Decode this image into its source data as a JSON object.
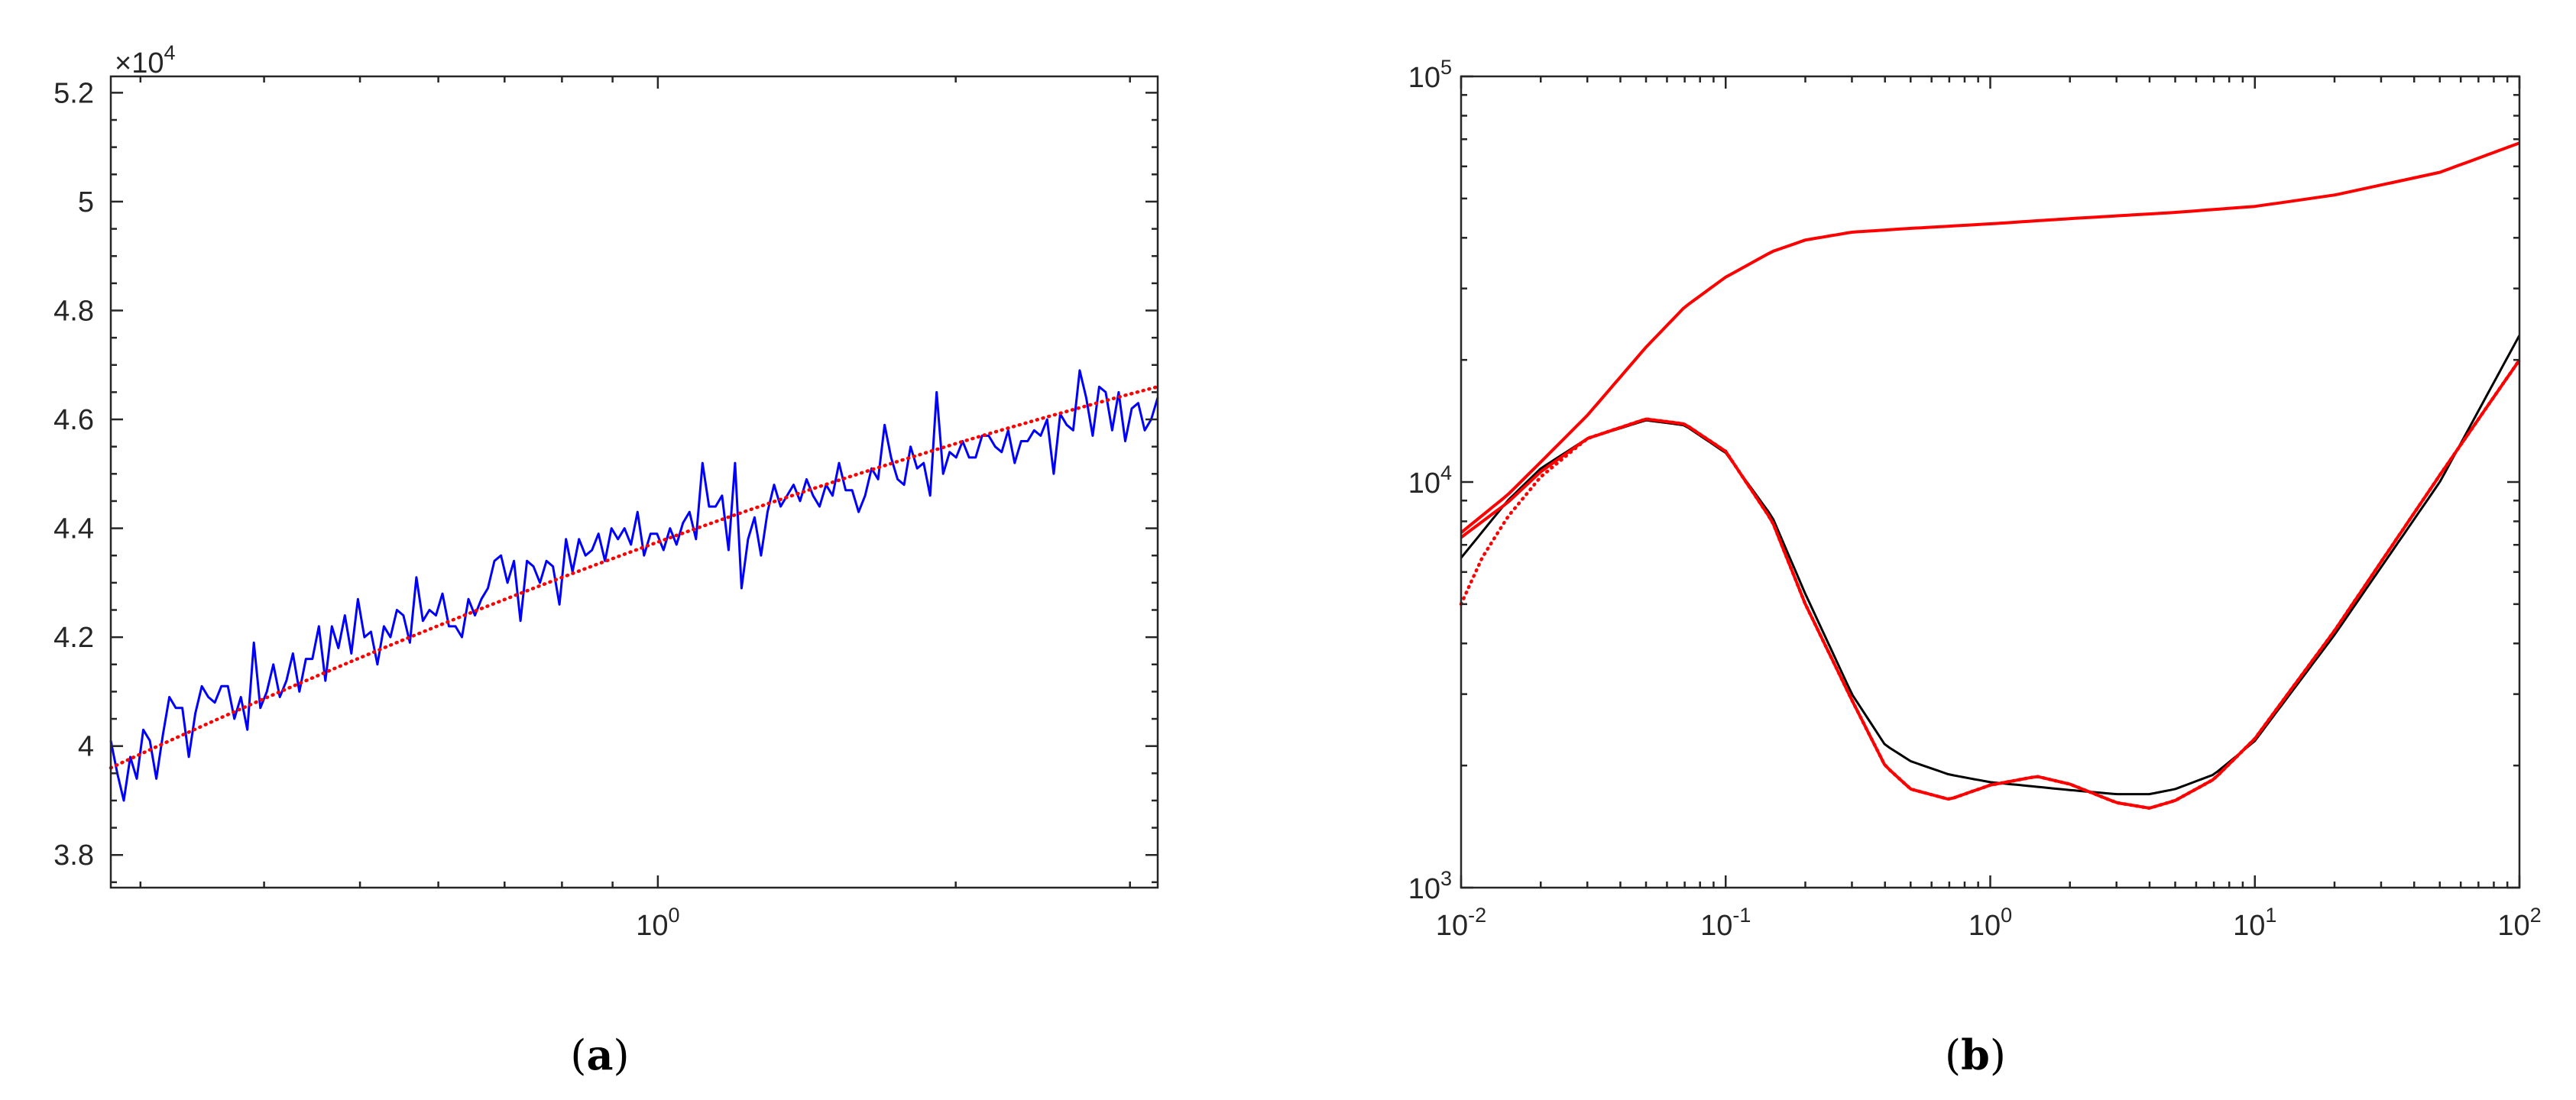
{
  "chart_data": [
    {
      "id": "a",
      "type": "line",
      "caption": "a",
      "xscale": "log",
      "xlim": [
        0.28,
        3.2
      ],
      "ylim": [
        37400,
        52300
      ],
      "exponent_label": {
        "base": "×10",
        "exp": "4"
      },
      "y_ticks": [
        {
          "v": 38000,
          "label": "3.8"
        },
        {
          "v": 40000,
          "label": "4"
        },
        {
          "v": 42000,
          "label": "4.2"
        },
        {
          "v": 44000,
          "label": "4.4"
        },
        {
          "v": 46000,
          "label": "4.6"
        },
        {
          "v": 48000,
          "label": "4.8"
        },
        {
          "v": 50000,
          "label": "5"
        },
        {
          "v": 52000,
          "label": "5.2"
        }
      ],
      "x_ticks": [
        {
          "v": 1,
          "base": "10",
          "exp": "0"
        }
      ],
      "series": [
        {
          "style": "solid",
          "color": "#0000ff",
          "x_start": 0.28,
          "x_end": 3.2,
          "y": [
            40100,
            39500,
            39000,
            39800,
            39400,
            40300,
            40100,
            39400,
            40200,
            40900,
            40700,
            40700,
            39800,
            40600,
            41100,
            40900,
            40800,
            41100,
            41100,
            40500,
            40900,
            40300,
            41900,
            40700,
            41000,
            41500,
            40900,
            41200,
            41700,
            41000,
            41600,
            41600,
            42200,
            41200,
            42200,
            41800,
            42400,
            41700,
            42700,
            42000,
            42100,
            41500,
            42200,
            42000,
            42500,
            42400,
            41900,
            43100,
            42300,
            42500,
            42400,
            42800,
            42200,
            42200,
            42000,
            42700,
            42400,
            42700,
            42900,
            43400,
            43500,
            43000,
            43400,
            42300,
            43400,
            43300,
            43000,
            43400,
            43300,
            42600,
            43800,
            43200,
            43800,
            43500,
            43600,
            43900,
            43400,
            44000,
            43800,
            44000,
            43700,
            44300,
            43500,
            43900,
            43900,
            43600,
            44000,
            43700,
            44100,
            44300,
            43800,
            45200,
            44400,
            44400,
            44600,
            43600,
            45200,
            42900,
            43800,
            44200,
            43500,
            44300,
            44800,
            44400,
            44600,
            44800,
            44500,
            44900,
            44600,
            44400,
            44800,
            44600,
            45200,
            44700,
            44700,
            44300,
            44600,
            45100,
            44900,
            45900,
            45300,
            44900,
            44800,
            45500,
            45100,
            45200,
            44600,
            46500,
            45000,
            45400,
            45300,
            45600,
            45300,
            45300,
            45700,
            45700,
            45500,
            45400,
            45800,
            45200,
            45600,
            45600,
            45800,
            45700,
            46000,
            45000,
            46100,
            45900,
            45800,
            46900,
            46400,
            45700,
            46600,
            46500,
            45800,
            46500,
            45600,
            46200,
            46300,
            45800,
            46000,
            46400
          ]
        },
        {
          "style": "dotted",
          "color": "#ff0000",
          "x_start": 0.28,
          "x_end": 3.2,
          "y_start": 39600,
          "y_end": 46600,
          "bend": 0.07
        }
      ]
    },
    {
      "id": "b",
      "type": "line",
      "caption": "b",
      "xscale": "log",
      "yscale": "log",
      "xlim": [
        0.01,
        100
      ],
      "ylim": [
        1000,
        100000
      ],
      "x_ticks": [
        {
          "v": 0.01,
          "base": "10",
          "exp": "-2"
        },
        {
          "v": 0.1,
          "base": "10",
          "exp": "-1"
        },
        {
          "v": 1,
          "base": "10",
          "exp": "0"
        },
        {
          "v": 10,
          "base": "10",
          "exp": "1"
        },
        {
          "v": 100,
          "base": "10",
          "exp": "2"
        }
      ],
      "y_ticks": [
        {
          "v": 1000,
          "base": "10",
          "exp": "3"
        },
        {
          "v": 10000,
          "base": "10",
          "exp": "4"
        },
        {
          "v": 100000,
          "base": "10",
          "exp": "5"
        }
      ],
      "series": [
        {
          "style": "solid",
          "color": "#ff0000",
          "points": [
            [
              0.01,
              7500
            ],
            [
              0.015,
              9300
            ],
            [
              0.02,
              11200
            ],
            [
              0.03,
              14600
            ],
            [
              0.05,
              21500
            ],
            [
              0.07,
              27000
            ],
            [
              0.1,
              32000
            ],
            [
              0.15,
              37000
            ],
            [
              0.2,
              39500
            ],
            [
              0.3,
              41300
            ],
            [
              0.5,
              42200
            ],
            [
              1,
              43300
            ],
            [
              2,
              44600
            ],
            [
              5,
              46200
            ],
            [
              10,
              47800
            ],
            [
              20,
              51000
            ],
            [
              50,
              58000
            ],
            [
              100,
              68500
            ]
          ]
        },
        {
          "style": "solid",
          "color": "#000000",
          "points": [
            [
              0.01,
              6500
            ],
            [
              0.015,
              9000
            ],
            [
              0.02,
              10800
            ],
            [
              0.03,
              12800
            ],
            [
              0.05,
              14200
            ],
            [
              0.07,
              13800
            ],
            [
              0.1,
              11800
            ],
            [
              0.15,
              8200
            ],
            [
              0.2,
              5300
            ],
            [
              0.3,
              3000
            ],
            [
              0.4,
              2250
            ],
            [
              0.5,
              2050
            ],
            [
              0.7,
              1900
            ],
            [
              1,
              1820
            ],
            [
              2,
              1740
            ],
            [
              3,
              1700
            ],
            [
              4,
              1700
            ],
            [
              5,
              1750
            ],
            [
              7,
              1900
            ],
            [
              10,
              2300
            ],
            [
              20,
              4200
            ],
            [
              50,
              10000
            ],
            [
              100,
              23000
            ]
          ]
        },
        {
          "style": "dotted",
          "color": "#ff0000",
          "points": [
            [
              0.01,
              5000
            ],
            [
              0.012,
              6500
            ],
            [
              0.015,
              8200
            ],
            [
              0.02,
              10300
            ],
            [
              0.03,
              12800
            ],
            [
              0.05,
              14300
            ],
            [
              0.07,
              13900
            ],
            [
              0.1,
              11900
            ],
            [
              0.15,
              8000
            ],
            [
              0.2,
              5000
            ],
            [
              0.3,
              2900
            ],
            [
              0.4,
              2000
            ],
            [
              0.5,
              1750
            ],
            [
              0.7,
              1650
            ],
            [
              1,
              1790
            ],
            [
              1.5,
              1880
            ],
            [
              2,
              1800
            ],
            [
              3,
              1620
            ],
            [
              4,
              1570
            ],
            [
              5,
              1640
            ],
            [
              7,
              1850
            ],
            [
              10,
              2330
            ],
            [
              20,
              4300
            ],
            [
              50,
              10400
            ],
            [
              100,
              20000
            ]
          ]
        },
        {
          "style": "solid",
          "color": "#ff0000",
          "points": [
            [
              0.01,
              7300
            ],
            [
              0.015,
              8900
            ],
            [
              0.02,
              10600
            ],
            [
              0.03,
              12800
            ],
            [
              0.05,
              14300
            ],
            [
              0.07,
              13900
            ],
            [
              0.1,
              11900
            ],
            [
              0.15,
              8000
            ],
            [
              0.2,
              5000
            ],
            [
              0.3,
              2900
            ],
            [
              0.4,
              2000
            ],
            [
              0.5,
              1750
            ],
            [
              0.7,
              1650
            ],
            [
              1,
              1790
            ],
            [
              1.5,
              1880
            ],
            [
              2,
              1800
            ],
            [
              3,
              1620
            ],
            [
              4,
              1570
            ],
            [
              5,
              1640
            ],
            [
              7,
              1850
            ],
            [
              10,
              2330
            ],
            [
              20,
              4300
            ],
            [
              50,
              10400
            ],
            [
              100,
              20000
            ]
          ]
        }
      ]
    }
  ]
}
